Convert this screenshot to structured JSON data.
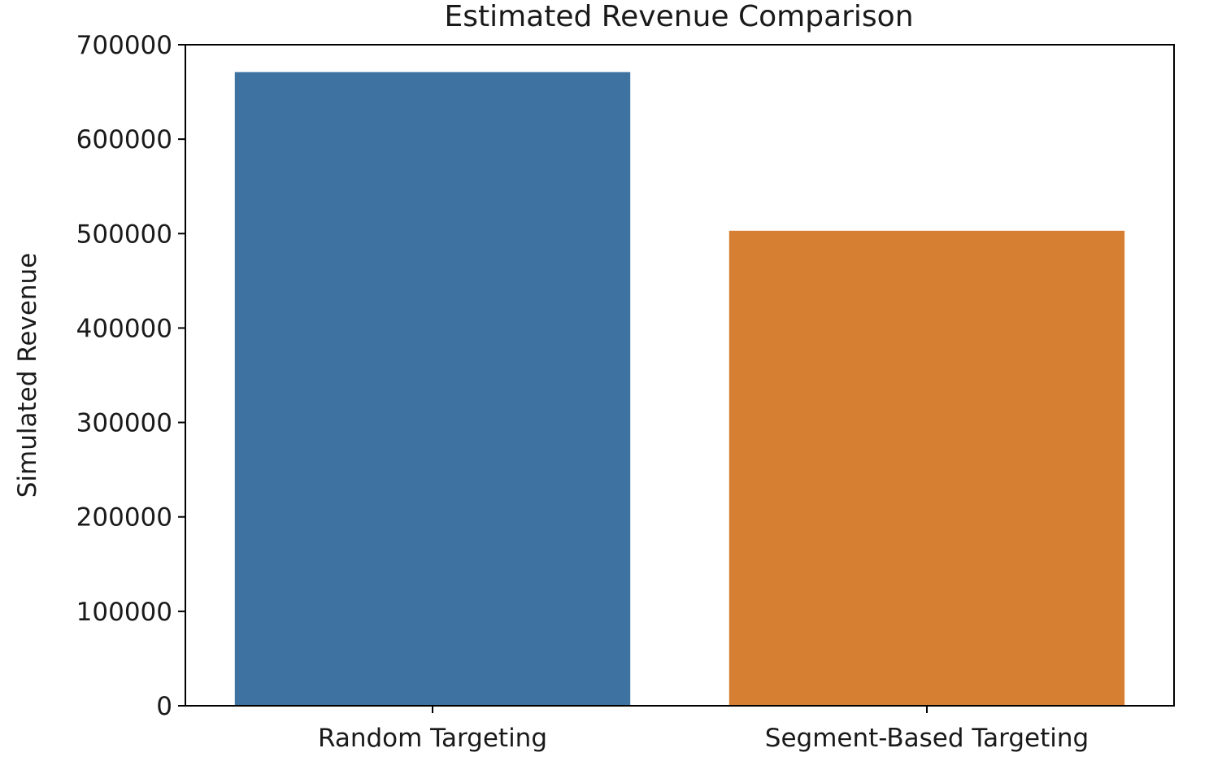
{
  "chart_data": {
    "type": "bar",
    "title": "Estimated Revenue Comparison",
    "xlabel": "",
    "ylabel": "Simulated Revenue",
    "categories": [
      "Random Targeting",
      "Segment-Based Targeting"
    ],
    "values": [
      671000,
      503000
    ],
    "colors": [
      "#3d72a1",
      "#d67f33"
    ],
    "ylim": [
      0,
      700000
    ],
    "yticks": [
      0,
      100000,
      200000,
      300000,
      400000,
      500000,
      600000,
      700000
    ],
    "ytick_labels": [
      "0",
      "100000",
      "200000",
      "300000",
      "400000",
      "500000",
      "600000",
      "700000"
    ],
    "grid": false,
    "legend": "none"
  }
}
